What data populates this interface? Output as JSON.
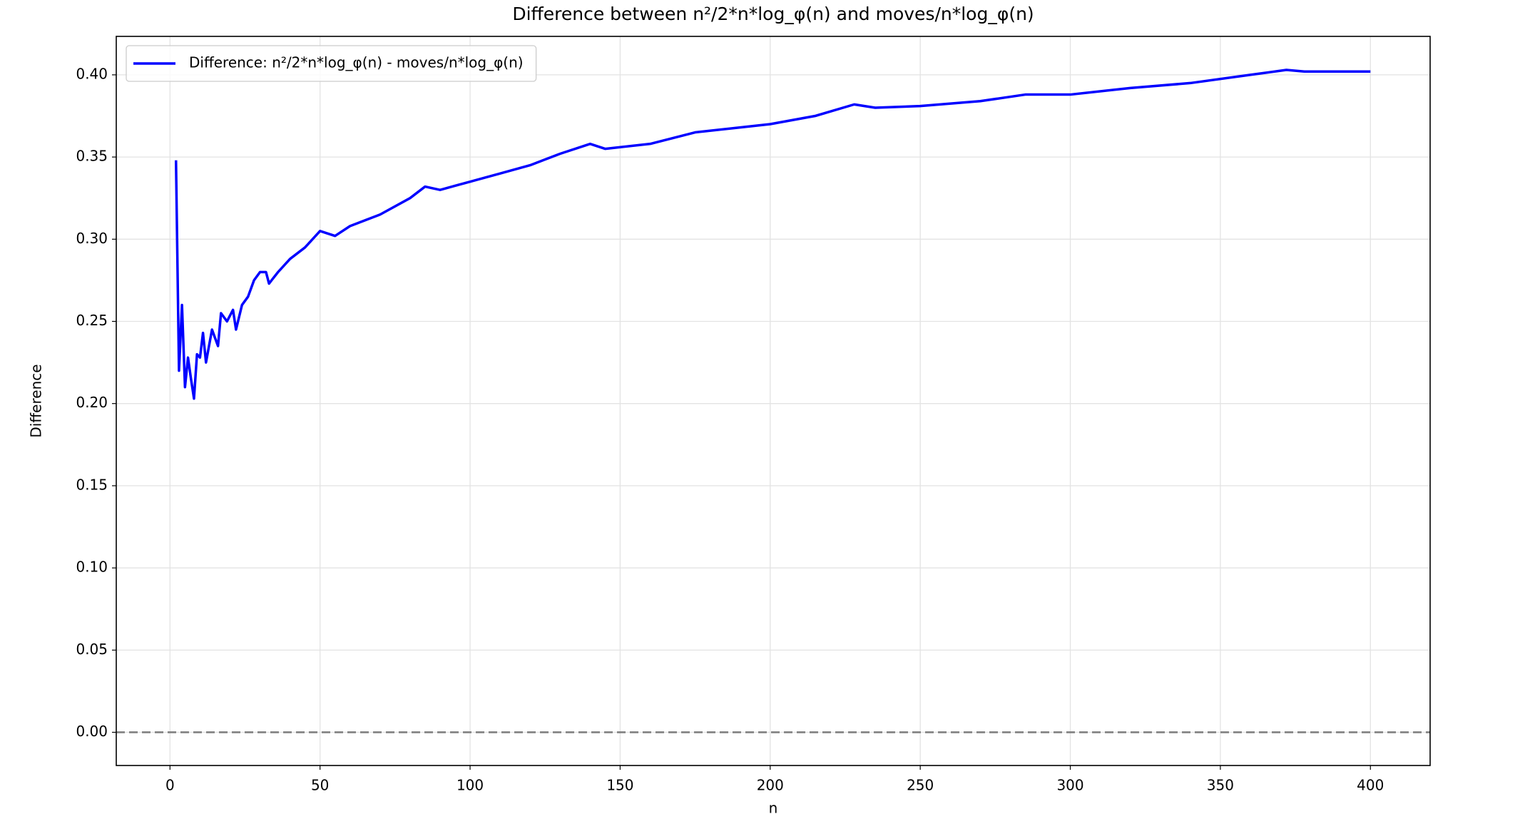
{
  "chart_data": {
    "type": "line",
    "title": "Difference between n²/2*n*log_φ(n) and moves/n*log_φ(n)",
    "x_label": "n",
    "y_label": "Difference",
    "xlim": [
      -17.9,
      419.9
    ],
    "ylim": [
      -0.0202,
      0.4234
    ],
    "xticks": [
      0,
      50,
      100,
      150,
      200,
      250,
      300,
      350,
      400
    ],
    "yticks": [
      {
        "value": 0,
        "label": "0.00"
      },
      0.05,
      {
        "value": 0.1,
        "label": "0.10"
      },
      0.15,
      {
        "value": 0.2,
        "label": "0.20"
      },
      0.25,
      {
        "value": 0.3,
        "label": "0.30"
      },
      0.35,
      {
        "value": 0.4,
        "label": "0.40"
      }
    ],
    "grid": true,
    "legend": "upper left",
    "hline": 0,
    "series": [
      {
        "name": "Difference: n²/2*n*log_φ(n) - moves/n*log_φ(n)",
        "color": "#0000ff",
        "x": [
          2,
          3,
          4,
          5,
          6,
          7,
          8,
          9,
          10,
          11,
          12,
          14,
          16,
          17,
          19,
          21,
          22,
          24,
          26,
          28,
          30,
          32,
          33,
          36,
          40,
          45,
          50,
          55,
          60,
          70,
          80,
          85,
          90,
          100,
          110,
          120,
          130,
          140,
          145,
          160,
          175,
          190,
          200,
          215,
          228,
          235,
          250,
          270,
          285,
          300,
          320,
          340,
          360,
          372,
          378,
          400
        ],
        "values": [
          0.348,
          0.22,
          0.26,
          0.21,
          0.228,
          0.215,
          0.203,
          0.23,
          0.228,
          0.243,
          0.225,
          0.245,
          0.235,
          0.255,
          0.25,
          0.257,
          0.245,
          0.26,
          0.265,
          0.275,
          0.28,
          0.28,
          0.273,
          0.28,
          0.288,
          0.295,
          0.305,
          0.302,
          0.308,
          0.315,
          0.325,
          0.332,
          0.33,
          0.335,
          0.34,
          0.345,
          0.352,
          0.358,
          0.355,
          0.358,
          0.365,
          0.368,
          0.37,
          0.375,
          0.382,
          0.38,
          0.381,
          0.384,
          0.388,
          0.388,
          0.392,
          0.395,
          0.4,
          0.403,
          0.402,
          0.402
        ]
      }
    ]
  }
}
